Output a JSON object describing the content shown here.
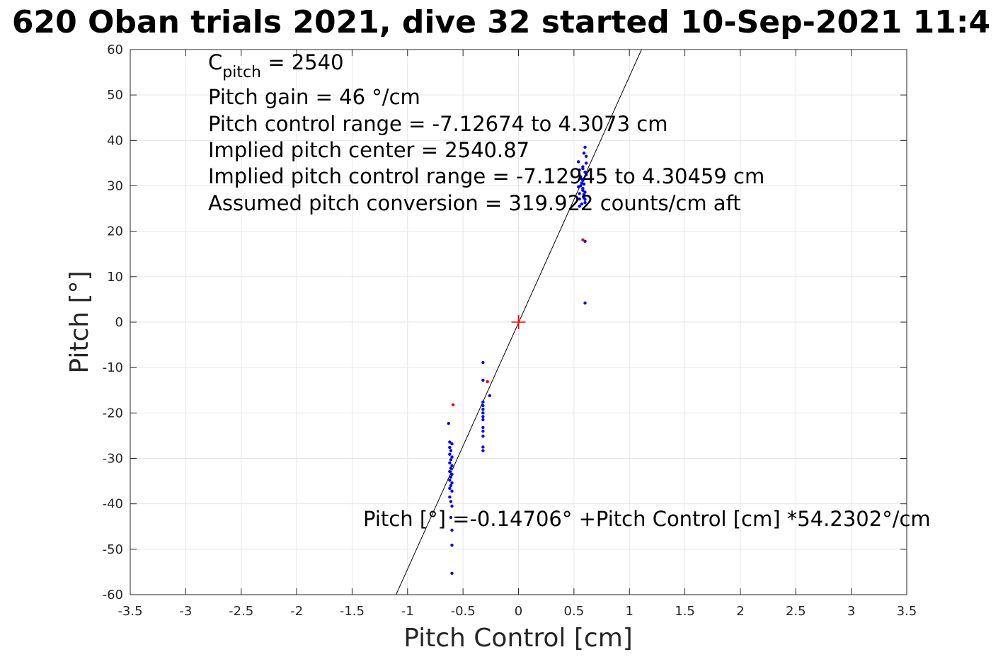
{
  "chart_data": {
    "type": "scatter",
    "title": "620 Oban trials 2021, dive 32 started 10-Sep-2021 11:4",
    "xlabel": "Pitch Control [cm]",
    "ylabel": "Pitch [°]",
    "xlim": [
      -3.5,
      3.5
    ],
    "ylim": [
      -60,
      60
    ],
    "xticks": [
      "-3.5",
      "-3",
      "-2.5",
      "-2",
      "-1.5",
      "-1",
      "-0.5",
      "0",
      "0.5",
      "1",
      "1.5",
      "2",
      "2.5",
      "3",
      "3.5"
    ],
    "yticks": [
      "-60",
      "-50",
      "-40",
      "-30",
      "-20",
      "-10",
      "0",
      "10",
      "20",
      "30",
      "40",
      "50",
      "60"
    ],
    "grid": true,
    "annotations": {
      "cpitch_symbol": "C",
      "cpitch_sub": "pitch",
      "cpitch_value": " = 2540",
      "gain": "Pitch gain = 46 °/cm",
      "range": "Pitch control range = -7.12674 to 4.3073 cm",
      "center": "Implied pitch center = 2540.87",
      "implied_range": "Implied pitch control range = -7.12945 to 4.30459 cm",
      "conversion": "Assumed pitch conversion = 319.922 counts/cm aft"
    },
    "fit_equation": "Pitch [°] =-0.14706° +Pitch Control [cm] *54.2302°/cm",
    "fit_line": {
      "intercept": -0.14706,
      "slope": 54.2302,
      "color": "#000000"
    },
    "center_marker": {
      "x": 0,
      "y": 0,
      "color": "#ff0000"
    },
    "series": [
      {
        "color": "#0000ff",
        "points": [
          [
            0.54,
            35.3
          ],
          [
            0.55,
            33.5
          ],
          [
            0.56,
            32.0
          ],
          [
            0.57,
            30.6
          ],
          [
            0.58,
            29.4
          ],
          [
            0.59,
            28.1
          ],
          [
            0.6,
            27.0
          ],
          [
            0.57,
            26.0
          ],
          [
            0.55,
            25.5
          ],
          [
            0.6,
            38.5
          ],
          [
            0.59,
            37.2
          ],
          [
            0.61,
            36.5
          ],
          [
            0.58,
            34.2
          ],
          [
            0.6,
            33.0
          ],
          [
            0.57,
            31.5
          ],
          [
            0.56,
            30.0
          ],
          [
            0.58,
            29.0
          ],
          [
            0.6,
            28.6
          ],
          [
            0.59,
            27.4
          ],
          [
            0.6,
            26.3
          ],
          [
            0.61,
            32.4
          ],
          [
            0.58,
            31.2
          ],
          [
            0.55,
            28.3
          ],
          [
            0.54,
            29.8
          ],
          [
            0.61,
            35.0
          ],
          [
            0.58,
            33.8
          ],
          [
            0.59,
            30.4
          ],
          [
            0.55,
            27.1
          ],
          [
            0.6,
            17.8
          ],
          [
            0.6,
            4.2
          ],
          [
            -0.32,
            -8.9
          ],
          [
            -0.32,
            -12.8
          ],
          [
            -0.26,
            -16.2
          ],
          [
            -0.32,
            -17.6
          ],
          [
            -0.32,
            -18.4
          ],
          [
            -0.32,
            -19.2
          ],
          [
            -0.32,
            -20.0
          ],
          [
            -0.32,
            -20.8
          ],
          [
            -0.32,
            -21.5
          ],
          [
            -0.32,
            -23.2
          ],
          [
            -0.32,
            -24.0
          ],
          [
            -0.32,
            -25.1
          ],
          [
            -0.32,
            -27.5
          ],
          [
            -0.32,
            -28.3
          ],
          [
            -0.63,
            -22.3
          ],
          [
            -0.62,
            -26.4
          ],
          [
            -0.6,
            -26.8
          ],
          [
            -0.62,
            -27.6
          ],
          [
            -0.61,
            -28.3
          ],
          [
            -0.62,
            -29.1
          ],
          [
            -0.6,
            -29.7
          ],
          [
            -0.61,
            -30.3
          ],
          [
            -0.62,
            -31.0
          ],
          [
            -0.6,
            -31.6
          ],
          [
            -0.61,
            -32.2
          ],
          [
            -0.62,
            -32.9
          ],
          [
            -0.6,
            -33.5
          ],
          [
            -0.61,
            -34.1
          ],
          [
            -0.62,
            -34.8
          ],
          [
            -0.6,
            -35.4
          ],
          [
            -0.61,
            -36.0
          ],
          [
            -0.62,
            -36.6
          ],
          [
            -0.6,
            -37.2
          ],
          [
            -0.62,
            -38.5
          ],
          [
            -0.61,
            -39.5
          ],
          [
            -0.6,
            -40.5
          ],
          [
            -0.61,
            -43.0
          ],
          [
            -0.6,
            -45.8
          ],
          [
            -0.6,
            -49.1
          ],
          [
            -0.6,
            -55.3
          ]
        ]
      },
      {
        "color": "#ff0000",
        "points": [
          [
            0.58,
            18.1
          ],
          [
            -0.59,
            -18.2
          ],
          [
            -0.28,
            -13.1
          ]
        ]
      }
    ]
  }
}
